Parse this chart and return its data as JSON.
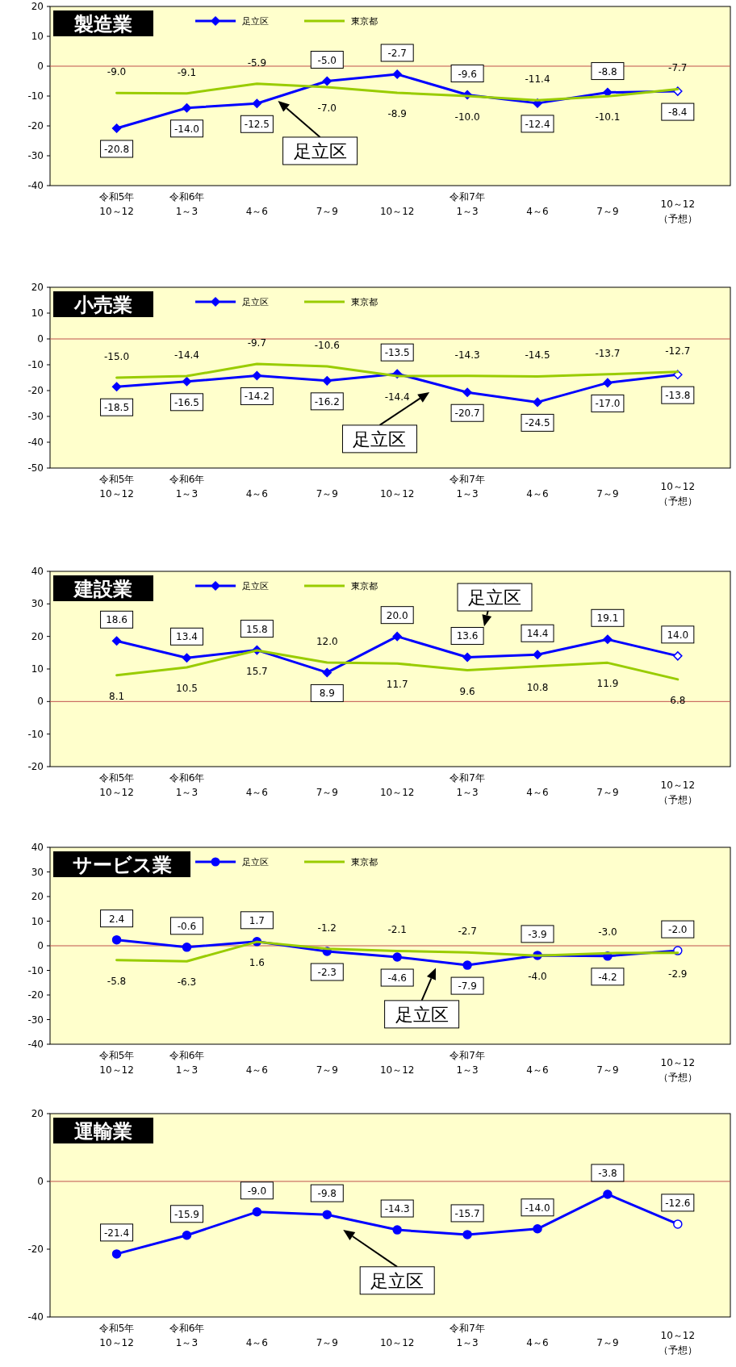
{
  "chart_data": [
    {
      "type": "line",
      "title": "製造業",
      "categories": [
        "令和5年\n10～12",
        "令和6年\n1～3",
        "4～6",
        "7～9",
        "10～12",
        "令和7年\n1～3",
        "4～6",
        "7～9",
        "10～12\n（予想）"
      ],
      "series": [
        {
          "name": "足立区",
          "color": "#0000ff",
          "marker": "diamond",
          "values": [
            -20.8,
            -14.0,
            -12.5,
            -5.0,
            -2.7,
            -9.6,
            -12.4,
            -8.8,
            -8.4
          ],
          "value_labels": [
            "-20.8",
            "-14.0",
            "-12.5",
            "-5.0",
            "-2.7",
            "-9.6",
            "-12.4",
            "-8.8",
            "-8.4"
          ]
        },
        {
          "name": "東京都",
          "color": "#99cc00",
          "marker": "none",
          "values": [
            -9.0,
            -9.1,
            -5.9,
            -7.0,
            -8.9,
            -10.0,
            -11.4,
            -10.1,
            -7.7
          ],
          "value_labels": [
            "-9.0",
            "-9.1",
            "-5.9",
            "-7.0",
            "-8.9",
            "-10.0",
            "-11.4",
            "-10.1",
            "-7.7"
          ]
        }
      ],
      "ylim": [
        -40,
        20
      ],
      "yticks": [
        -40,
        -30,
        -20,
        -10,
        0,
        10,
        20
      ],
      "ref_lines": [
        {
          "axis": "y",
          "value": 0,
          "color": "#c0504d"
        }
      ],
      "legend": "top"
    },
    {
      "type": "line",
      "title": "小売業",
      "categories": [
        "令和5年\n10～12",
        "令和6年\n1～3",
        "4～6",
        "7～9",
        "10～12",
        "令和7年\n1～3",
        "4～6",
        "7～9",
        "10～12\n（予想）"
      ],
      "series": [
        {
          "name": "足立区",
          "color": "#0000ff",
          "marker": "diamond",
          "values": [
            -18.5,
            -16.5,
            -14.2,
            -16.2,
            -13.5,
            -20.7,
            -24.5,
            -17.0,
            -13.8
          ],
          "value_labels": [
            "-18.5",
            "-16.5",
            "-14.2",
            "-16.2",
            "-13.5",
            "-20.7",
            "-24.5",
            "-17.0",
            "-13.8"
          ]
        },
        {
          "name": "東京都",
          "color": "#99cc00",
          "marker": "none",
          "values": [
            -15.0,
            -14.4,
            -9.7,
            -10.6,
            -14.4,
            -14.3,
            -14.5,
            -13.7,
            -12.7
          ],
          "value_labels": [
            "-15.0",
            "-14.4",
            "-9.7",
            "-10.6",
            "-14.4",
            "-14.3",
            "-14.5",
            "-13.7",
            "-12.7"
          ]
        }
      ],
      "ylim": [
        -50,
        20
      ],
      "yticks": [
        -50,
        -40,
        -30,
        -20,
        -10,
        0,
        10,
        20
      ],
      "ref_lines": [
        {
          "axis": "y",
          "value": 0,
          "color": "#c0504d"
        }
      ],
      "legend": "top"
    },
    {
      "type": "line",
      "title": "建設業",
      "categories": [
        "令和5年\n10～12",
        "令和6年\n1～3",
        "4～6",
        "7～9",
        "10～12",
        "令和7年\n1～3",
        "4～6",
        "7～9",
        "10～12\n（予想）"
      ],
      "series": [
        {
          "name": "足立区",
          "color": "#0000ff",
          "marker": "diamond",
          "values": [
            18.6,
            13.4,
            15.8,
            8.9,
            20.0,
            13.6,
            14.4,
            19.1,
            14.0
          ],
          "value_labels": [
            "18.6",
            "13.4",
            "15.8",
            "8.9",
            "20.0",
            "13.6",
            "14.4",
            "19.1",
            "14.0"
          ]
        },
        {
          "name": "東京都",
          "color": "#99cc00",
          "marker": "none",
          "values": [
            8.1,
            10.5,
            15.7,
            12.0,
            11.7,
            9.6,
            10.8,
            11.9,
            6.8
          ],
          "value_labels": [
            "8.1",
            "10.5",
            "15.7",
            "12.0",
            "11.7",
            "9.6",
            "10.8",
            "11.9",
            "6.8"
          ]
        }
      ],
      "ylim": [
        -20,
        40
      ],
      "yticks": [
        -20,
        -10,
        0,
        10,
        20,
        30,
        40
      ],
      "ref_lines": [
        {
          "axis": "y",
          "value": 0,
          "color": "#c0504d"
        }
      ],
      "legend": "top"
    },
    {
      "type": "line",
      "title": "サービス業",
      "categories": [
        "令和5年\n10～12",
        "令和6年\n1～3",
        "4～6",
        "7～9",
        "10～12",
        "令和7年\n1～3",
        "4～6",
        "7～9",
        "10～12\n（予想）"
      ],
      "series": [
        {
          "name": "足立区",
          "color": "#0000ff",
          "marker": "circle",
          "values": [
            2.4,
            -0.6,
            1.7,
            -2.3,
            -4.6,
            -7.9,
            -3.9,
            -4.2,
            -2.0
          ],
          "value_labels": [
            "2.4",
            "-0.6",
            "1.7",
            "-2.3",
            "-4.6",
            "-7.9",
            "-3.9",
            "-4.2",
            "-2.0"
          ]
        },
        {
          "name": "東京都",
          "color": "#99cc00",
          "marker": "none",
          "values": [
            -5.8,
            -6.3,
            1.6,
            -1.2,
            -2.1,
            -2.7,
            -4.0,
            -3.0,
            -2.9
          ],
          "value_labels": [
            "-5.8",
            "-6.3",
            "1.6",
            "-1.2",
            "-2.1",
            "-2.7",
            "-4.0",
            "-3.0",
            "-2.9"
          ]
        }
      ],
      "ylim": [
        -40,
        40
      ],
      "yticks": [
        -40,
        -30,
        -20,
        -10,
        0,
        10,
        20,
        30,
        40
      ],
      "ref_lines": [
        {
          "axis": "y",
          "value": 0,
          "color": "#c0504d"
        }
      ],
      "legend": "top"
    },
    {
      "type": "line",
      "title": "運輸業",
      "categories": [
        "令和5年\n10～12",
        "令和6年\n1～3",
        "4～6",
        "7～9",
        "10～12",
        "令和7年\n1～3",
        "4～6",
        "7～9",
        "10～12\n（予想）"
      ],
      "series": [
        {
          "name": "足立区",
          "color": "#0000ff",
          "marker": "circle",
          "values": [
            -21.4,
            -15.9,
            -9.0,
            -9.8,
            -14.3,
            -15.7,
            -14.0,
            -3.8,
            -12.6
          ],
          "value_labels": [
            "-21.4",
            "-15.9",
            "-9.0",
            "-9.8",
            "-14.3",
            "-15.7",
            "-14.0",
            "-3.8",
            "-12.6"
          ]
        }
      ],
      "ylim": [
        -40,
        20
      ],
      "yticks": [
        -40,
        -20,
        0,
        20
      ],
      "ref_lines": [
        {
          "axis": "y",
          "value": 0,
          "color": "#c0504d"
        }
      ]
    }
  ]
}
